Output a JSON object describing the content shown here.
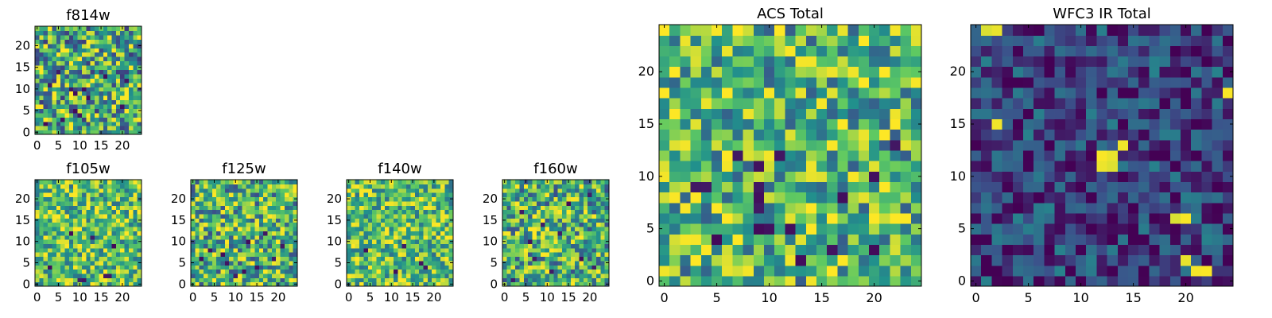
{
  "chart_data": [
    {
      "id": "f814w",
      "type": "heatmap",
      "title": "f814w",
      "size": 25,
      "seed": 11,
      "base": 0.62,
      "spread": 0.55,
      "dark_cells": [
        [
          8,
          10
        ],
        [
          9,
          9
        ],
        [
          9,
          5
        ],
        [
          10,
          4
        ],
        [
          11,
          10
        ],
        [
          6,
          3
        ],
        [
          20,
          6
        ],
        [
          12,
          8
        ],
        [
          2,
          2
        ],
        [
          16,
          13
        ],
        [
          5,
          14
        ],
        [
          21,
          12
        ],
        [
          3,
          11
        ]
      ],
      "bright_cells": [
        [
          6,
          20
        ],
        [
          15,
          17
        ],
        [
          12,
          18
        ],
        [
          22,
          11
        ],
        [
          4,
          8
        ],
        [
          18,
          3
        ]
      ],
      "xticks": [
        "0",
        "5",
        "10",
        "15",
        "20"
      ],
      "yticks": [
        "0",
        "5",
        "10",
        "15",
        "20"
      ],
      "xlim": [
        0,
        25
      ],
      "ylim": [
        0,
        25
      ]
    },
    {
      "id": "f105w",
      "type": "heatmap",
      "title": "f105w",
      "size": 25,
      "seed": 23,
      "base": 0.7,
      "spread": 0.42,
      "dark_cells": [
        [
          10,
          1
        ],
        [
          11,
          1
        ],
        [
          16,
          2
        ],
        [
          17,
          2
        ],
        [
          3,
          4
        ],
        [
          8,
          12
        ],
        [
          18,
          9
        ],
        [
          13,
          11
        ]
      ],
      "bright_cells": [
        [
          9,
          23
        ],
        [
          14,
          23
        ],
        [
          6,
          10
        ],
        [
          22,
          11
        ],
        [
          17,
          19
        ]
      ],
      "xticks": [
        "0",
        "5",
        "10",
        "15",
        "20"
      ],
      "yticks": [
        "0",
        "5",
        "10",
        "15",
        "20"
      ],
      "xlim": [
        0,
        25
      ],
      "ylim": [
        0,
        25
      ]
    },
    {
      "id": "f125w",
      "type": "heatmap",
      "title": "f125w",
      "size": 25,
      "seed": 37,
      "base": 0.64,
      "spread": 0.5,
      "dark_cells": [
        [
          13,
          10
        ],
        [
          12,
          3
        ],
        [
          8,
          5
        ],
        [
          7,
          7
        ],
        [
          19,
          6
        ],
        [
          2,
          6
        ],
        [
          17,
          12
        ],
        [
          15,
          4
        ],
        [
          4,
          8
        ],
        [
          10,
          2
        ],
        [
          21,
          9
        ]
      ],
      "bright_cells": [
        [
          3,
          23
        ],
        [
          18,
          23
        ],
        [
          9,
          21
        ],
        [
          23,
          5
        ],
        [
          14,
          19
        ]
      ],
      "xticks": [
        "0",
        "5",
        "10",
        "15",
        "20"
      ],
      "yticks": [
        "0",
        "5",
        "10",
        "15",
        "20"
      ],
      "xlim": [
        0,
        25
      ],
      "ylim": [
        0,
        25
      ]
    },
    {
      "id": "f140w",
      "type": "heatmap",
      "title": "f140w",
      "size": 25,
      "seed": 53,
      "base": 0.7,
      "spread": 0.42,
      "dark_cells": [
        [
          4,
          8
        ],
        [
          17,
          5
        ],
        [
          18,
          4
        ],
        [
          11,
          3
        ],
        [
          13,
          9
        ]
      ],
      "bright_cells": [
        [
          22,
          17
        ],
        [
          20,
          14
        ],
        [
          5,
          22
        ],
        [
          9,
          10
        ],
        [
          2,
          5
        ]
      ],
      "xticks": [
        "0",
        "5",
        "10",
        "15",
        "20"
      ],
      "yticks": [
        "0",
        "5",
        "10",
        "15",
        "20"
      ],
      "xlim": [
        0,
        25
      ],
      "ylim": [
        0,
        25
      ]
    },
    {
      "id": "f160w",
      "type": "heatmap",
      "title": "f160w",
      "size": 25,
      "seed": 71,
      "base": 0.64,
      "spread": 0.5,
      "dark_cells": [
        [
          15,
          19
        ],
        [
          2,
          1
        ],
        [
          11,
          3
        ],
        [
          18,
          6
        ],
        [
          6,
          10
        ],
        [
          21,
          4
        ],
        [
          9,
          14
        ],
        [
          13,
          12
        ],
        [
          4,
          17
        ],
        [
          20,
          21
        ],
        [
          7,
          6
        ]
      ],
      "bright_cells": [
        [
          16,
          20
        ],
        [
          22,
          22
        ],
        [
          1,
          12
        ],
        [
          12,
          8
        ],
        [
          19,
          15
        ],
        [
          5,
          3
        ]
      ],
      "xticks": [
        "0",
        "5",
        "10",
        "15",
        "20"
      ],
      "yticks": [
        "0",
        "5",
        "10",
        "15",
        "20"
      ],
      "xlim": [
        0,
        25
      ],
      "ylim": [
        0,
        25
      ]
    },
    {
      "id": "acs_total",
      "type": "heatmap",
      "title": "ACS Total",
      "size": 25,
      "seed": 97,
      "base": 0.66,
      "spread": 0.46,
      "dark_cells": [
        [
          10,
          5
        ],
        [
          9,
          5
        ],
        [
          5,
          4
        ],
        [
          12,
          5
        ],
        [
          9,
          7
        ],
        [
          9,
          8
        ],
        [
          9,
          11
        ],
        [
          11,
          12
        ],
        [
          9,
          9
        ],
        [
          20,
          10
        ],
        [
          7,
          12
        ],
        [
          4,
          9
        ],
        [
          16,
          3
        ],
        [
          13,
          2
        ],
        [
          20,
          3
        ],
        [
          3,
          9
        ],
        [
          17,
          8
        ],
        [
          22,
          13
        ]
      ],
      "bright_cells": [
        [
          2,
          23
        ],
        [
          13,
          21
        ],
        [
          14,
          21
        ],
        [
          12,
          22
        ],
        [
          15,
          17
        ],
        [
          4,
          17
        ],
        [
          16,
          18
        ],
        [
          21,
          9
        ],
        [
          22,
          3
        ],
        [
          10,
          18
        ],
        [
          18,
          20
        ]
      ],
      "xticks": [
        "0",
        "5",
        "10",
        "15",
        "20"
      ],
      "yticks": [
        "0",
        "5",
        "10",
        "15",
        "20"
      ],
      "xlim": [
        0,
        25
      ],
      "ylim": [
        0,
        25
      ]
    },
    {
      "id": "wfc3_ir_total",
      "type": "heatmap",
      "title": "WFC3 IR Total",
      "size": 25,
      "seed": 131,
      "base": 0.2,
      "spread": 0.3,
      "dark_cells": [
        [
          8,
          8
        ],
        [
          8,
          7
        ],
        [
          8,
          6
        ],
        [
          8,
          5
        ],
        [
          9,
          9
        ],
        [
          4,
          3
        ],
        [
          5,
          3
        ],
        [
          11,
          11
        ],
        [
          15,
          10
        ],
        [
          20,
          3
        ],
        [
          21,
          4
        ],
        [
          17,
          2
        ],
        [
          2,
          13
        ],
        [
          6,
          17
        ],
        [
          7,
          18
        ],
        [
          19,
          20
        ],
        [
          10,
          21
        ],
        [
          12,
          1
        ],
        [
          3,
          7
        ],
        [
          14,
          14
        ]
      ],
      "bright_cells": [
        [
          1,
          24
        ],
        [
          2,
          24
        ],
        [
          2,
          15
        ],
        [
          12,
          12
        ],
        [
          13,
          12
        ],
        [
          12,
          11
        ],
        [
          13,
          11
        ],
        [
          14,
          13
        ],
        [
          24,
          18
        ],
        [
          19,
          6
        ],
        [
          20,
          6
        ],
        [
          20,
          2
        ],
        [
          21,
          1
        ],
        [
          22,
          1
        ]
      ],
      "xticks": [
        "0",
        "5",
        "10",
        "15",
        "20"
      ],
      "yticks": [
        "0",
        "5",
        "10",
        "15",
        "20"
      ],
      "xlim": [
        0,
        25
      ],
      "ylim": [
        0,
        25
      ]
    }
  ],
  "colormap": [
    "#440154",
    "#3b528b",
    "#21918c",
    "#5ec962",
    "#fde725"
  ]
}
